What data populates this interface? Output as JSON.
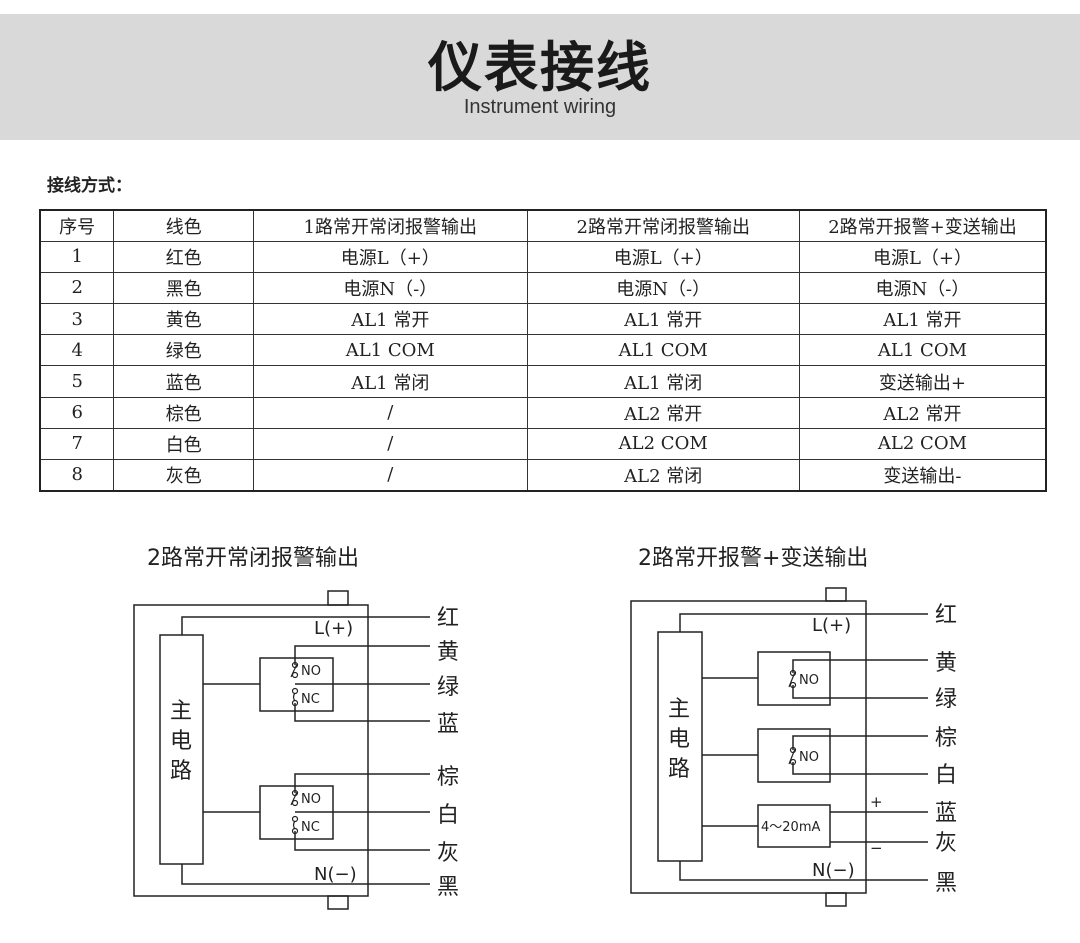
{
  "header": {
    "title": "仪表接线",
    "subtitle": "Instrument wiring"
  },
  "section_label": "接线方式：",
  "table": {
    "headers": [
      "序号",
      "线色",
      "1路常开常闭报警输出",
      "2路常开常闭报警输出",
      "2路常开报警+变送输出"
    ],
    "rows": [
      [
        "1",
        "红色",
        "电源L（+）",
        "电源L（+）",
        "电源L（+）"
      ],
      [
        "2",
        "黑色",
        "电源N（-）",
        "电源N（-）",
        "电源N（-）"
      ],
      [
        "3",
        "黄色",
        "AL1 常开",
        "AL1 常开",
        "AL1 常开"
      ],
      [
        "4",
        "绿色",
        "AL1 COM",
        "AL1 COM",
        "AL1 COM"
      ],
      [
        "5",
        "蓝色",
        "AL1 常闭",
        "AL1 常闭",
        "变送输出+"
      ],
      [
        "6",
        "棕色",
        "/",
        "AL2 常开",
        "AL2 常开"
      ],
      [
        "7",
        "白色",
        "/",
        "AL2 COM",
        "AL2 COM"
      ],
      [
        "8",
        "灰色",
        "/",
        "AL2 常闭",
        "变送输出-"
      ]
    ]
  },
  "diagram1": {
    "title": "2路常开常闭报警输出",
    "main": [
      "主",
      "电",
      "路"
    ],
    "L": "L(+)",
    "N": "N(−)",
    "no": "NO",
    "nc": "NC",
    "wires": [
      "红",
      "黄",
      "绿",
      "蓝",
      "棕",
      "白",
      "灰",
      "黑"
    ]
  },
  "diagram2": {
    "title": "2路常开报警+变送输出",
    "main": [
      "主",
      "电",
      "路"
    ],
    "L": "L(+)",
    "N": "N(−)",
    "no": "NO",
    "ma": "4～20mA",
    "plus": "+",
    "minus": "−",
    "wires": [
      "红",
      "黄",
      "绿",
      "棕",
      "白",
      "蓝",
      "灰",
      "黑"
    ]
  }
}
